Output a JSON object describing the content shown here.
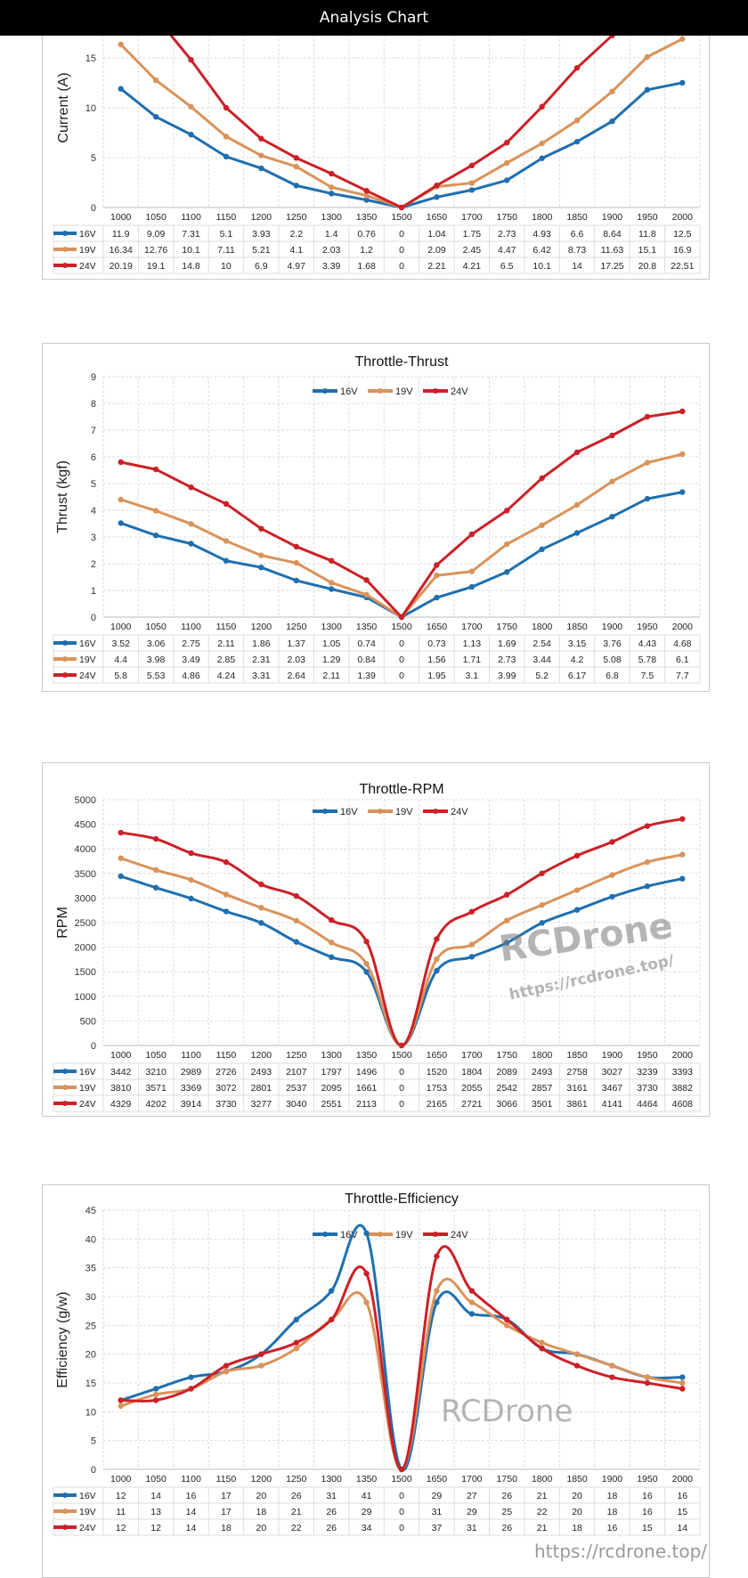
{
  "header": {
    "title": "Analysis Chart"
  },
  "watermark": {
    "brand": "RCDrone",
    "url": "https://rcdrone.top/"
  },
  "colors": {
    "16V": "#1f6fae",
    "19V": "#d9935a",
    "24V": "#cc2027"
  },
  "chart_data": [
    {
      "type": "line",
      "title": "",
      "ylabel": "Current (A)",
      "xlabel": "",
      "ylim": [
        0,
        20
      ],
      "yticks": [
        0,
        5,
        10,
        15
      ],
      "grid": true,
      "smooth": false,
      "categories": [
        "1000",
        "1050",
        "1100",
        "1150",
        "1200",
        "1250",
        "1300",
        "1350",
        "1500",
        "1650",
        "1700",
        "1750",
        "1800",
        "1850",
        "1900",
        "1950",
        "2000"
      ],
      "series": [
        {
          "name": "16V",
          "values": [
            11.9,
            9.09,
            7.31,
            5.1,
            3.93,
            2.2,
            1.4,
            0.76,
            0,
            1.04,
            1.75,
            2.73,
            4.93,
            6.6,
            8.64,
            11.8,
            12.5
          ]
        },
        {
          "name": "19V",
          "values": [
            16.34,
            12.76,
            10.1,
            7.11,
            5.21,
            4.1,
            2.03,
            1.2,
            0,
            2.09,
            2.45,
            4.47,
            6.42,
            8.73,
            11.63,
            15.1,
            16.9
          ]
        },
        {
          "name": "24V",
          "values": [
            20.19,
            19.1,
            14.8,
            10,
            6.9,
            4.97,
            3.39,
            1.68,
            0,
            2.21,
            4.21,
            6.5,
            10.1,
            14,
            17.25,
            20.8,
            22.51
          ]
        }
      ]
    },
    {
      "type": "line",
      "title": "Throttle-Thrust",
      "ylabel": "Thrust (kgf)",
      "xlabel": "",
      "ylim": [
        0,
        9
      ],
      "yticks": [
        0,
        1,
        2,
        3,
        4,
        5,
        6,
        7,
        8,
        9
      ],
      "grid": true,
      "legend": "top-center",
      "smooth": false,
      "categories": [
        "1000",
        "1050",
        "1100",
        "1150",
        "1200",
        "1250",
        "1300",
        "1350",
        "1500",
        "1650",
        "1700",
        "1750",
        "1800",
        "1850",
        "1900",
        "1950",
        "2000"
      ],
      "series": [
        {
          "name": "16V",
          "values": [
            3.52,
            3.06,
            2.75,
            2.11,
            1.86,
            1.37,
            1.05,
            0.74,
            0,
            0.73,
            1.13,
            1.69,
            2.54,
            3.15,
            3.76,
            4.43,
            4.68
          ]
        },
        {
          "name": "19V",
          "values": [
            4.4,
            3.98,
            3.49,
            2.85,
            2.31,
            2.03,
            1.29,
            0.84,
            0,
            1.56,
            1.71,
            2.73,
            3.44,
            4.2,
            5.08,
            5.78,
            6.1
          ]
        },
        {
          "name": "24V",
          "values": [
            5.8,
            5.53,
            4.86,
            4.24,
            3.31,
            2.64,
            2.11,
            1.39,
            0,
            1.95,
            3.1,
            3.99,
            5.2,
            6.17,
            6.8,
            7.5,
            7.7
          ]
        }
      ]
    },
    {
      "type": "line",
      "title": "Throttle-RPM",
      "ylabel": "RPM",
      "xlabel": "",
      "ylim": [
        0,
        5000
      ],
      "yticks": [
        0,
        500,
        1000,
        1500,
        2000,
        2500,
        3000,
        3500,
        4000,
        4500,
        5000
      ],
      "grid": true,
      "legend": "top-center",
      "smooth": true,
      "categories": [
        "1000",
        "1050",
        "1100",
        "1150",
        "1200",
        "1250",
        "1300",
        "1350",
        "1500",
        "1650",
        "1700",
        "1750",
        "1800",
        "1850",
        "1900",
        "1950",
        "2000"
      ],
      "series": [
        {
          "name": "16V",
          "values": [
            3442,
            3210,
            2989,
            2726,
            2493,
            2107,
            1797,
            1496,
            0,
            1520,
            1804,
            2089,
            2493,
            2758,
            3027,
            3239,
            3393
          ]
        },
        {
          "name": "19V",
          "values": [
            3810,
            3571,
            3369,
            3072,
            2801,
            2537,
            2095,
            1661,
            0,
            1753,
            2055,
            2542,
            2857,
            3161,
            3467,
            3730,
            3882
          ]
        },
        {
          "name": "24V",
          "values": [
            4329,
            4202,
            3914,
            3730,
            3277,
            3040,
            2551,
            2113,
            0,
            2165,
            2721,
            3066,
            3501,
            3861,
            4141,
            4464,
            4608
          ]
        }
      ]
    },
    {
      "type": "line",
      "title": "Throttle-Efficiency",
      "ylabel": "Efficiency (g/w)",
      "xlabel": "",
      "ylim": [
        0,
        45
      ],
      "yticks": [
        0,
        5,
        10,
        15,
        20,
        25,
        30,
        35,
        40,
        45
      ],
      "grid": true,
      "legend": "top-center",
      "smooth": true,
      "categories": [
        "1000",
        "1050",
        "1100",
        "1150",
        "1200",
        "1250",
        "1300",
        "1350",
        "1500",
        "1650",
        "1700",
        "1750",
        "1800",
        "1850",
        "1900",
        "1950",
        "2000"
      ],
      "series": [
        {
          "name": "16V",
          "values": [
            12,
            14,
            16,
            17,
            20,
            26,
            31,
            41,
            0,
            29,
            27,
            26,
            21,
            20,
            18,
            16,
            16
          ]
        },
        {
          "name": "19V",
          "values": [
            11,
            13,
            14,
            17,
            18,
            21,
            26,
            29,
            0,
            31,
            29,
            25,
            22,
            20,
            18,
            16,
            15
          ]
        },
        {
          "name": "24V",
          "values": [
            12,
            12,
            14,
            18,
            20,
            22,
            26,
            34,
            0,
            37,
            31,
            26,
            21,
            18,
            16,
            15,
            14
          ]
        }
      ]
    }
  ]
}
